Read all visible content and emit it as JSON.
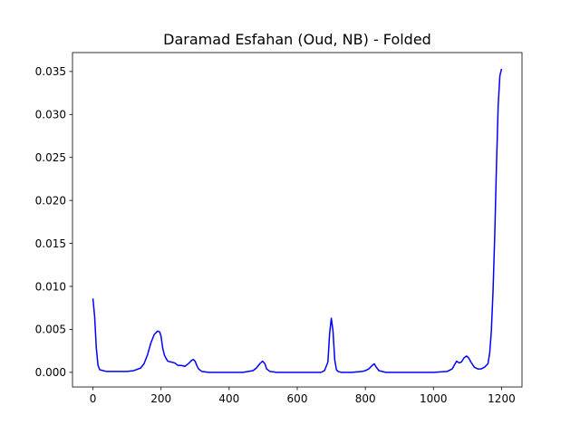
{
  "chart_data": {
    "type": "line",
    "title": "Daramad Esfahan (Oud, NB) - Folded",
    "xlabel": "",
    "ylabel": "",
    "xlim": [
      -60,
      1260
    ],
    "ylim": [
      -0.0017,
      0.0372
    ],
    "xticks": [
      0,
      200,
      400,
      600,
      800,
      1000,
      1200
    ],
    "xtick_labels": [
      "0",
      "200",
      "400",
      "600",
      "800",
      "1000",
      "1200"
    ],
    "yticks": [
      0.0,
      0.005,
      0.01,
      0.015,
      0.02,
      0.025,
      0.03,
      0.035
    ],
    "ytick_labels": [
      "0.000",
      "0.005",
      "0.010",
      "0.015",
      "0.020",
      "0.025",
      "0.030",
      "0.035"
    ],
    "grid": false,
    "line_color": "#0000ff",
    "series": [
      {
        "x": [
          0,
          5,
          10,
          15,
          20,
          30,
          40,
          60,
          80,
          100,
          120,
          140,
          150,
          160,
          170,
          180,
          190,
          196,
          200,
          205,
          210,
          215,
          220,
          230,
          240,
          250,
          260,
          270,
          280,
          290,
          295,
          300,
          305,
          310,
          320,
          340,
          360,
          400,
          440,
          470,
          480,
          490,
          498,
          505,
          510,
          520,
          540,
          570,
          600,
          640,
          670,
          680,
          690,
          695,
          700,
          705,
          710,
          715,
          720,
          730,
          760,
          790,
          800,
          810,
          820,
          826,
          832,
          840,
          860,
          900,
          950,
          1000,
          1040,
          1055,
          1062,
          1068,
          1075,
          1082,
          1090,
          1097,
          1103,
          1110,
          1120,
          1130,
          1140,
          1150,
          1160,
          1165,
          1170,
          1175,
          1180,
          1185,
          1190,
          1195,
          1200
        ],
        "y": [
          0.0086,
          0.0065,
          0.0028,
          0.0008,
          0.0003,
          0.0002,
          0.0001,
          0.0001,
          0.0001,
          0.0001,
          0.0002,
          0.0005,
          0.001,
          0.002,
          0.0034,
          0.0044,
          0.0048,
          0.0047,
          0.0042,
          0.0028,
          0.002,
          0.0016,
          0.0013,
          0.0012,
          0.0011,
          0.0008,
          0.0008,
          0.0007,
          0.001,
          0.0014,
          0.0015,
          0.0013,
          0.0008,
          0.0004,
          0.0001,
          0.0,
          0.0,
          0.0,
          0.0,
          0.0002,
          0.0005,
          0.001,
          0.0013,
          0.001,
          0.0004,
          0.0001,
          0.0,
          0.0,
          0.0,
          0.0,
          0.0,
          0.0002,
          0.0012,
          0.0045,
          0.0063,
          0.0048,
          0.0015,
          0.0003,
          0.0001,
          0.0,
          0.0,
          0.0001,
          0.0002,
          0.0004,
          0.0008,
          0.001,
          0.0006,
          0.0002,
          0.0,
          0.0,
          0.0,
          0.0,
          0.0001,
          0.0004,
          0.0009,
          0.0013,
          0.0011,
          0.0012,
          0.0017,
          0.0019,
          0.0017,
          0.0012,
          0.0006,
          0.0004,
          0.0004,
          0.0006,
          0.001,
          0.0022,
          0.0048,
          0.0095,
          0.016,
          0.024,
          0.031,
          0.0345,
          0.0353
        ]
      }
    ]
  }
}
